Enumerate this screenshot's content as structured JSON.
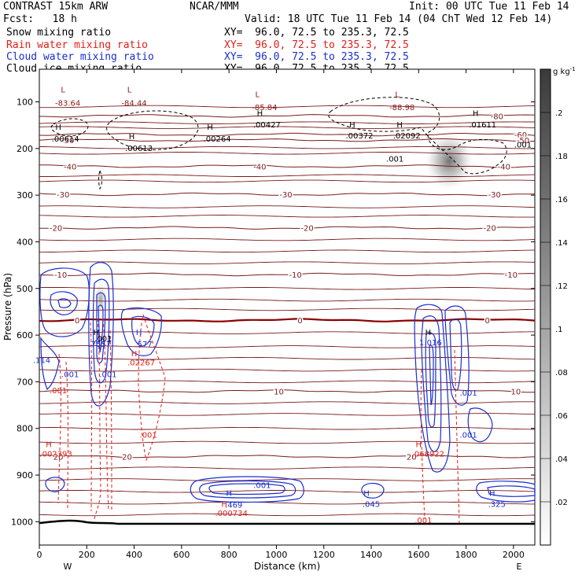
{
  "header": {
    "model": "CONTRAST 15km ARW",
    "org": "NCAR/MMM",
    "init": "Init: 00 UTC Tue 11 Feb 14",
    "fcst": "Fcst:   18 h",
    "valid": "Valid: 18 UTC Tue 11 Feb 14 (04 ChT Wed 12 Feb 14)",
    "fields": [
      {
        "name": "Snow mixing ratio",
        "xy": "XY=  96.0, 72.5 to 235.3, 72.5",
        "color": "#000000"
      },
      {
        "name": "Rain water mixing ratio",
        "xy": "XY=  96.0, 72.5 to 235.3, 72.5",
        "color": "#e0201a"
      },
      {
        "name": "Cloud water mixing ratio",
        "xy": "XY=  96.0, 72.5 to 235.3, 72.5",
        "color": "#1a2fd0"
      },
      {
        "name": "Cloud ice mixing ratio",
        "xy": "XY=  96.0, 72.5 to 235.3, 72.5",
        "color": "#000000"
      }
    ]
  },
  "chart_data": {
    "type": "contour",
    "xlabel": "Distance (km)",
    "ylabel": "Pressure (hPa)",
    "x_ticks": [
      0,
      200,
      400,
      600,
      800,
      1000,
      1200,
      1400,
      1600,
      1800,
      2000
    ],
    "y_ticks": [
      100,
      200,
      300,
      400,
      500,
      600,
      700,
      800,
      900,
      1000
    ],
    "xlim": [
      0,
      2090
    ],
    "ylim": [
      30,
      1050
    ],
    "x_end_labels": {
      "left": "W",
      "right": "E"
    },
    "colorbar": {
      "unit_label": "g kg",
      "unit_exp": "-1",
      "ticks": [
        ".02",
        ".04",
        ".06",
        ".08",
        ".1",
        ".12",
        ".14",
        ".16",
        ".18",
        ".2"
      ],
      "min": 0,
      "max": 0.22
    },
    "temperature_contours": [
      {
        "p": 130,
        "label": "-80",
        "labels_at": [
          1930
        ]
      },
      {
        "p": 170,
        "label": "-60",
        "labels_at": [
          2030
        ]
      },
      {
        "p": 182,
        "label": "-50",
        "labels_at": [
          120,
          2040
        ]
      },
      {
        "p": 238,
        "label": "-40",
        "labels_at": [
          130,
          930,
          1960
        ]
      },
      {
        "p": 298,
        "label": "-30",
        "labels_at": [
          100,
          1040,
          1920
        ]
      },
      {
        "p": 370,
        "label": "-20",
        "labels_at": [
          70,
          1130,
          1900
        ]
      },
      {
        "p": 470,
        "label": "-10",
        "labels_at": [
          90,
          1080,
          1990
        ]
      },
      {
        "p": 568,
        "label": "0",
        "labels_at": [
          160,
          1100,
          1890
        ]
      },
      {
        "p": 720,
        "label": "10",
        "labels_at": [
          1010,
          2010
        ]
      },
      {
        "p": 860,
        "label": "20",
        "labels_at": [
          80,
          370,
          1570
        ]
      }
    ],
    "annotations": [
      {
        "text": "L",
        "x": 100,
        "p": 80,
        "color": "#8b1a1a"
      },
      {
        "text": "-83.64",
        "x": 120,
        "p": 108,
        "color": "#8b1a1a"
      },
      {
        "text": "L",
        "x": 380,
        "p": 80,
        "color": "#8b1a1a"
      },
      {
        "text": "-84.44",
        "x": 400,
        "p": 108,
        "color": "#8b1a1a"
      },
      {
        "text": "L",
        "x": 920,
        "p": 90,
        "color": "#8b1a1a"
      },
      {
        "text": "-85.84",
        "x": 950,
        "p": 118,
        "color": "#8b1a1a"
      },
      {
        "text": "L",
        "x": 1510,
        "p": 90,
        "color": "#8b1a1a"
      },
      {
        "text": "-88.98",
        "x": 1530,
        "p": 118,
        "color": "#8b1a1a"
      },
      {
        "text": "H",
        "x": 80,
        "p": 160,
        "color": "#000000"
      },
      {
        "text": ".00614",
        "x": 110,
        "p": 185,
        "color": "#000000"
      },
      {
        "text": "H",
        "x": 390,
        "p": 180,
        "color": "#000000"
      },
      {
        "text": ".00613",
        "x": 420,
        "p": 205,
        "color": "#000000"
      },
      {
        "text": "H",
        "x": 720,
        "p": 160,
        "color": "#000000"
      },
      {
        "text": ".00264",
        "x": 750,
        "p": 185,
        "color": "#000000"
      },
      {
        "text": "H",
        "x": 930,
        "p": 130,
        "color": "#000000"
      },
      {
        "text": ".00427",
        "x": 960,
        "p": 155,
        "color": "#000000"
      },
      {
        "text": "H",
        "x": 1320,
        "p": 155,
        "color": "#000000"
      },
      {
        "text": ".00372",
        "x": 1350,
        "p": 178,
        "color": "#000000"
      },
      {
        "text": "H",
        "x": 1520,
        "p": 155,
        "color": "#000000"
      },
      {
        "text": ".02092",
        "x": 1550,
        "p": 178,
        "color": "#000000"
      },
      {
        "text": "H",
        "x": 1840,
        "p": 130,
        "color": "#000000"
      },
      {
        "text": ".01611",
        "x": 1870,
        "p": 155,
        "color": "#000000"
      },
      {
        "text": ".001",
        "x": 1500,
        "p": 228,
        "color": "#000000"
      },
      {
        "text": ".001",
        "x": 2040,
        "p": 198,
        "color": "#000000"
      },
      {
        "text": "H",
        "x": 240,
        "p": 600,
        "color": "#000000"
      },
      {
        "text": ".001",
        "x": 270,
        "p": 613,
        "color": "#000000"
      },
      {
        "text": ".7557",
        "x": 255,
        "p": 625,
        "color": "#1a2fd0"
      },
      {
        "text": "H",
        "x": 420,
        "p": 600,
        "color": "#1a2fd0"
      },
      {
        "text": ".577",
        "x": 440,
        "p": 625,
        "color": "#1a2fd0"
      },
      {
        "text": "H",
        "x": 400,
        "p": 645,
        "color": "#e0201a"
      },
      {
        "text": ".02267",
        "x": 430,
        "p": 665,
        "color": "#e0201a"
      },
      {
        "text": ".114",
        "x": 10,
        "p": 660,
        "color": "#1a2fd0"
      },
      {
        "text": ".001",
        "x": 130,
        "p": 690,
        "color": "#1a2fd0"
      },
      {
        "text": ".001",
        "x": 290,
        "p": 690,
        "color": "#1a2fd0"
      },
      {
        "text": ".001",
        "x": 80,
        "p": 725,
        "color": "#e0201a"
      },
      {
        "text": "H",
        "x": 40,
        "p": 840,
        "color": "#e0201a"
      },
      {
        "text": ".002393",
        "x": 70,
        "p": 860,
        "color": "#e0201a"
      },
      {
        "text": ".001",
        "x": 460,
        "p": 820,
        "color": "#e0201a"
      },
      {
        "text": "H",
        "x": 1640,
        "p": 600,
        "color": "#000000"
      },
      {
        "text": "1.016",
        "x": 1650,
        "p": 622,
        "color": "#1a2fd0"
      },
      {
        "text": ".001",
        "x": 1810,
        "p": 730,
        "color": "#1a2fd0"
      },
      {
        "text": ".001",
        "x": 1810,
        "p": 820,
        "color": "#1a2fd0"
      },
      {
        "text": "H",
        "x": 1600,
        "p": 840,
        "color": "#e0201a"
      },
      {
        "text": ".068922",
        "x": 1640,
        "p": 860,
        "color": "#e0201a"
      },
      {
        "text": "H",
        "x": 800,
        "p": 945,
        "color": "#1a2fd0"
      },
      {
        "text": ".001",
        "x": 940,
        "p": 928,
        "color": "#1a2fd0"
      },
      {
        "text": ".469",
        "x": 820,
        "p": 970,
        "color": "#1a2fd0"
      },
      {
        "text": "H",
        "x": 780,
        "p": 968,
        "color": "#e0201a"
      },
      {
        "text": ".000734",
        "x": 810,
        "p": 988,
        "color": "#e0201a"
      },
      {
        "text": "H",
        "x": 1380,
        "p": 945,
        "color": "#1a2fd0"
      },
      {
        "text": ".045",
        "x": 1400,
        "p": 968,
        "color": "#1a2fd0"
      },
      {
        "text": "H",
        "x": 1910,
        "p": 945,
        "color": "#1a2fd0"
      },
      {
        "text": ".325",
        "x": 1930,
        "p": 968,
        "color": "#1a2fd0"
      },
      {
        "text": ".001",
        "x": 1620,
        "p": 1003,
        "color": "#e0201a"
      }
    ]
  }
}
